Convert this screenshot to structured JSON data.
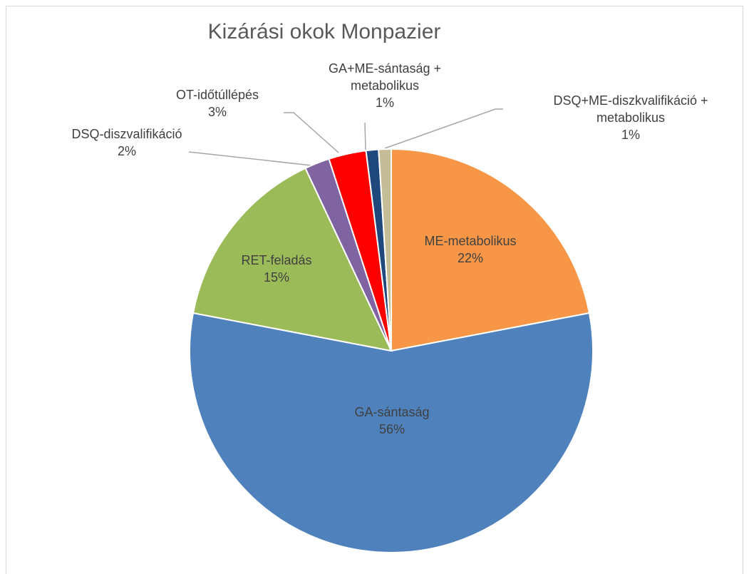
{
  "chart_data": {
    "type": "pie",
    "title": "Kizárási okok Monpazier",
    "categories": [
      "ME-metabolikus",
      "GA-sántaság",
      "RET-feladás",
      "DSQ-diszvalifikáció",
      "OT-időtúllépés",
      "GA+ME-sántaság + metabolikus",
      "DSQ+ME-diszkvalifikáció + metabolikus"
    ],
    "values": [
      22,
      56,
      15,
      2,
      3,
      1,
      1
    ],
    "value_labels": [
      "22%",
      "56%",
      "15%",
      "2%",
      "3%",
      "1%",
      "1%"
    ],
    "colors": [
      "#F79646",
      "#4F81BD",
      "#9BBB59",
      "#8064A2",
      "#FF0000",
      "#1F497D",
      "#C4BD97"
    ]
  }
}
